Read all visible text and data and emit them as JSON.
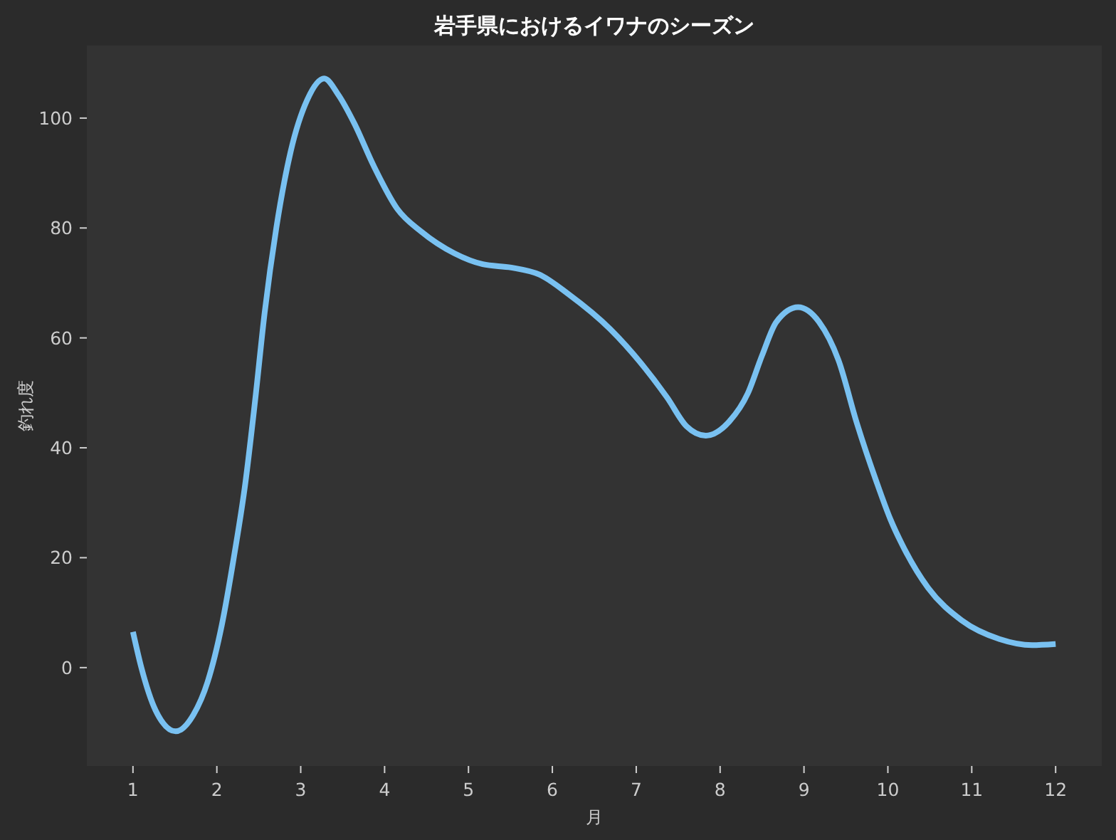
{
  "chart_data": {
    "type": "line",
    "title": "岩手県におけるイワナのシーズン",
    "xlabel": "月",
    "ylabel": "釣れ度",
    "x": [
      1.0,
      1.1,
      1.27,
      1.51,
      1.72,
      1.89,
      2.06,
      2.2,
      2.34,
      2.46,
      2.57,
      2.71,
      2.88,
      3.08,
      3.28,
      3.45,
      3.64,
      3.87,
      4.15,
      4.44,
      4.83,
      5.17,
      5.51,
      5.85,
      6.19,
      6.69,
      7.37,
      7.6,
      7.83,
      8.11,
      8.33,
      8.5,
      8.67,
      8.93,
      9.18,
      9.41,
      9.63,
      9.86,
      10.03,
      10.2,
      10.48,
      10.88,
      11.33,
      11.72,
      12.0
    ],
    "series": [
      {
        "color": "#79c1f1",
        "values": [
          6.5,
          0,
          -7.8,
          -11.6,
          -8.6,
          -2.6,
          7.8,
          19.8,
          33.6,
          49.1,
          64.6,
          80.1,
          93.9,
          103.4,
          107.2,
          104.2,
          99.0,
          91.3,
          83.5,
          79.3,
          75.4,
          73.4,
          72.8,
          71.5,
          68.0,
          61.6,
          49.1,
          43.9,
          42.2,
          44.8,
          49.9,
          56.8,
          62.9,
          65.6,
          62.9,
          56.0,
          44.5,
          34.0,
          27.0,
          21.5,
          14.5,
          8.6,
          5.2,
          4.1,
          4.3
        ]
      }
    ],
    "xlim": [
      0.45,
      12.55
    ],
    "ylim": [
      -17.9,
      113.2
    ],
    "xticks": [
      1,
      2,
      3,
      4,
      5,
      6,
      7,
      8,
      9,
      10,
      11,
      12
    ],
    "yticks": [
      0,
      20,
      40,
      60,
      80,
      100
    ],
    "line_style": "solid"
  }
}
